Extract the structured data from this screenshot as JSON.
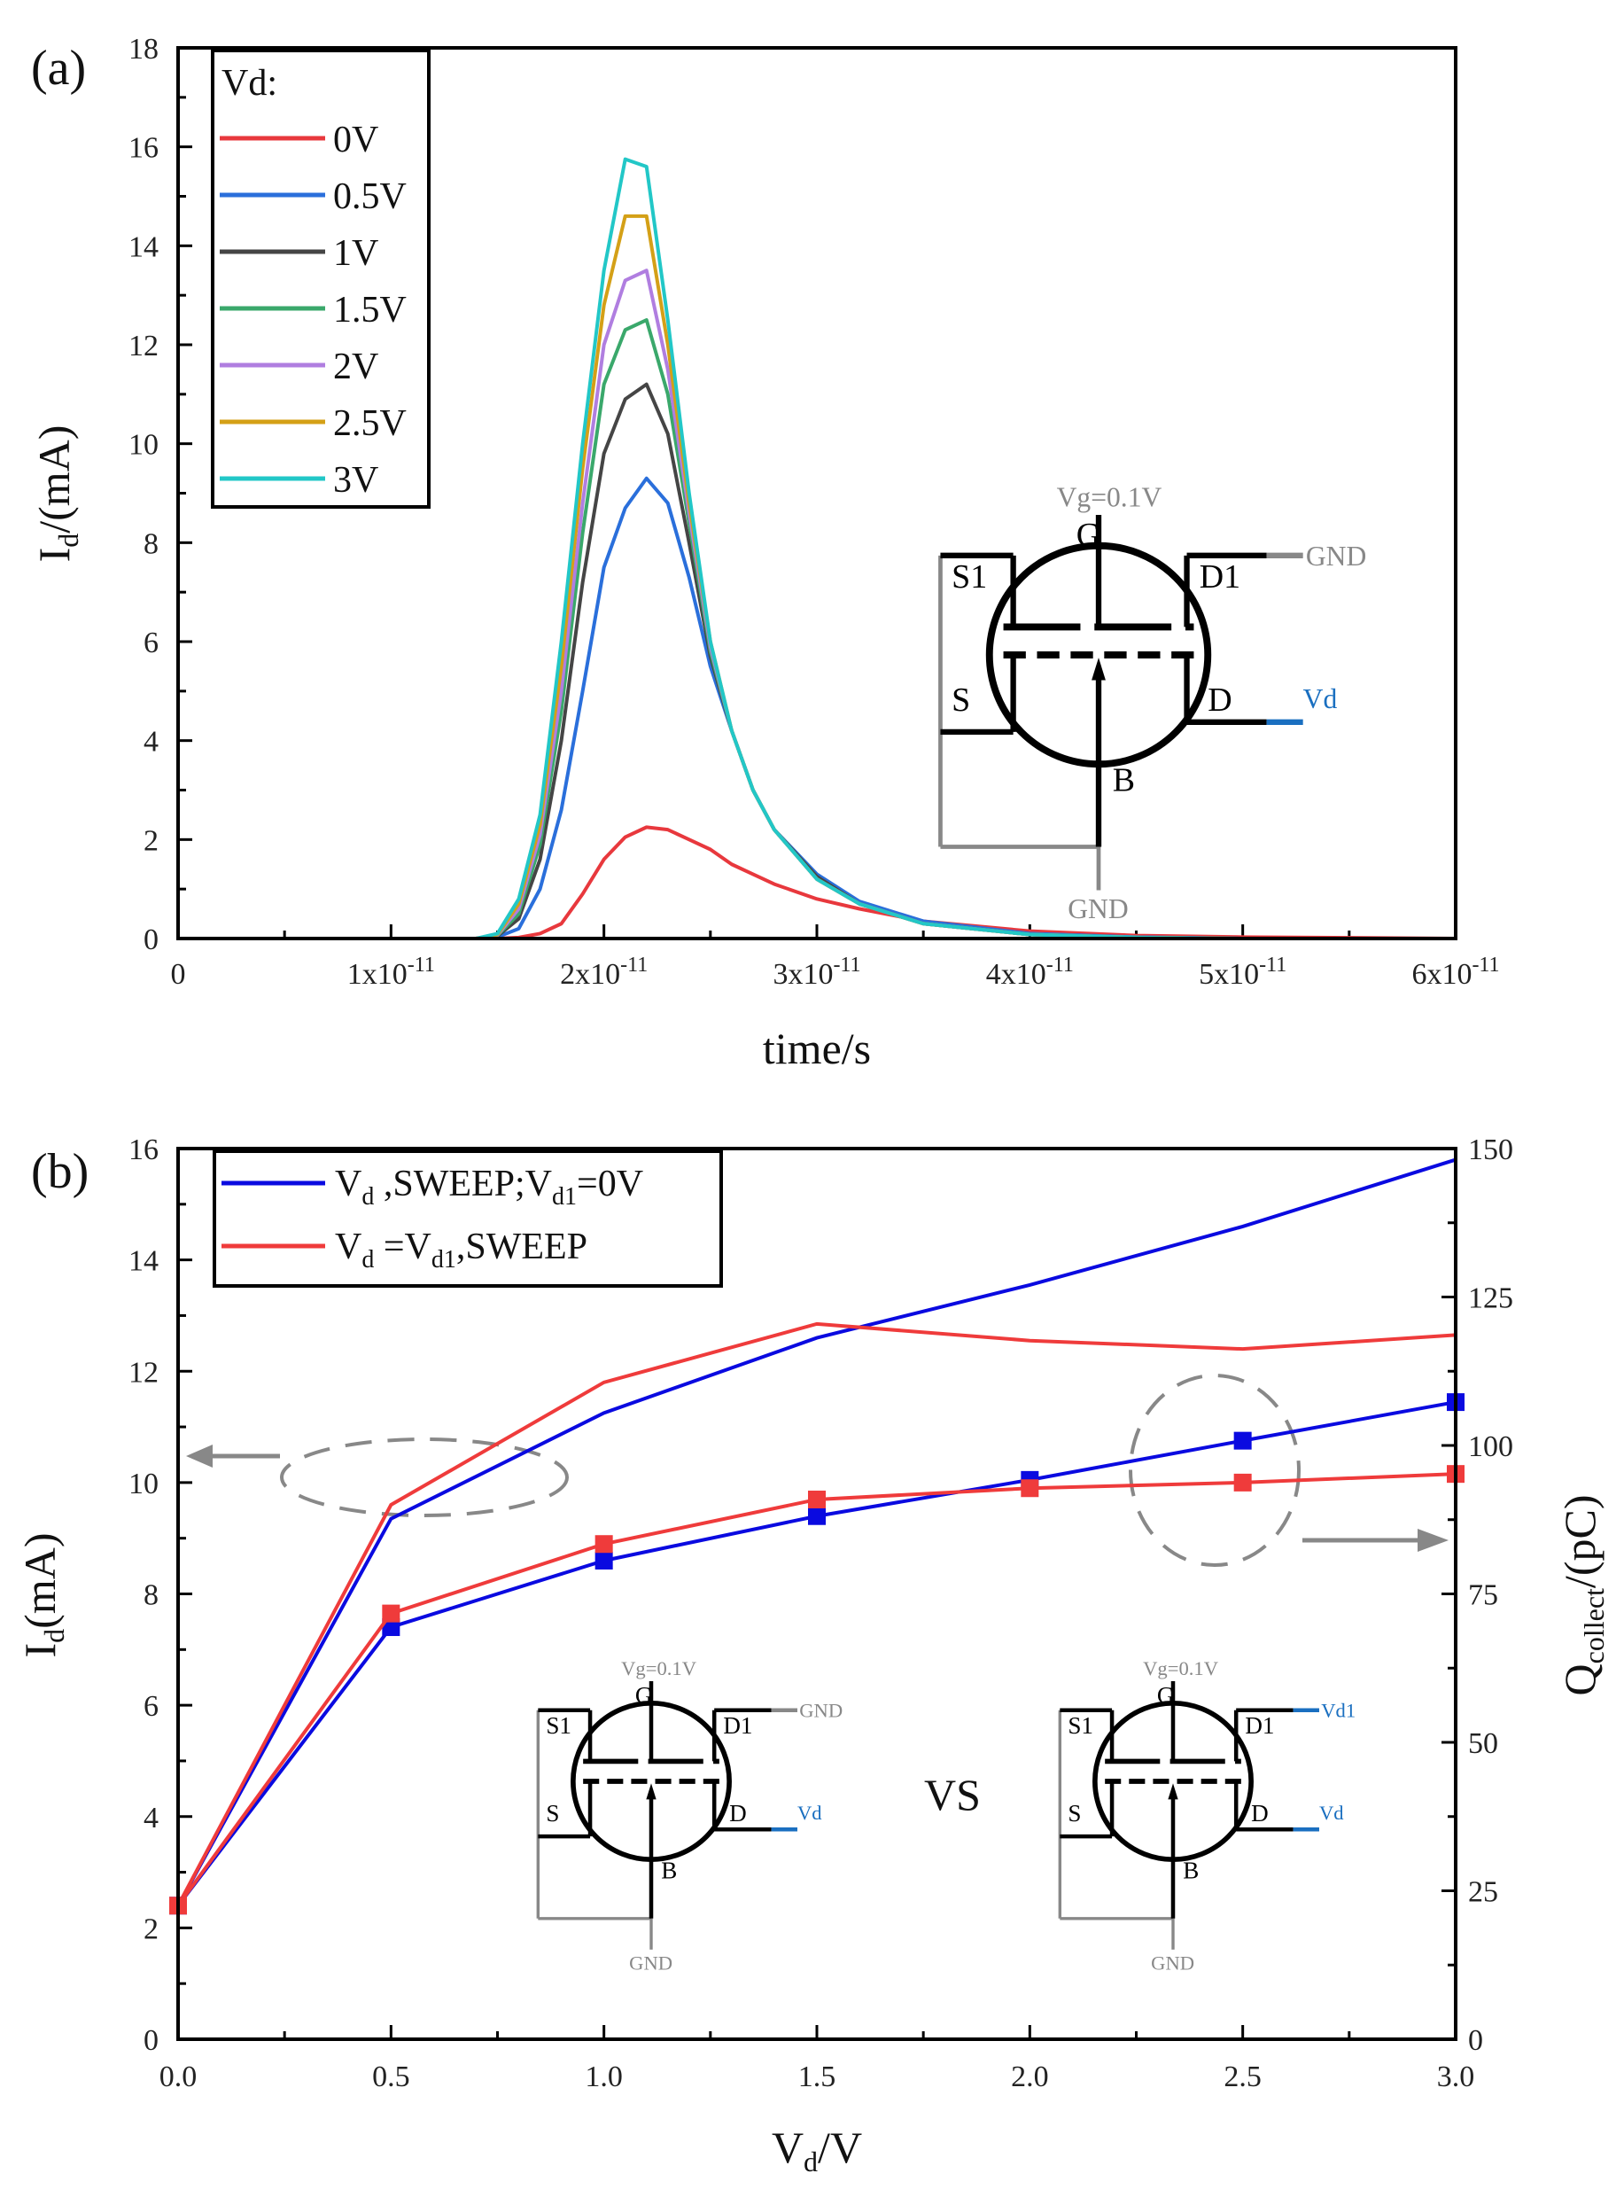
{
  "chart_data": [
    {
      "type": "line",
      "panel_label": "(a)",
      "xlabel": "time/s",
      "ylabel_main": "I",
      "ylabel_sub": "d",
      "ylabel_rest": "/(mA)",
      "xlim": [
        0,
        6e-11
      ],
      "ylim": [
        0,
        18
      ],
      "x_unit_scale": 1e-11,
      "xtick_values": [
        0,
        1,
        2,
        3,
        4,
        5,
        6
      ],
      "xtick_labels": [
        {
          "m": "0",
          "e": ""
        },
        {
          "m": "1x10",
          "e": "-11"
        },
        {
          "m": "2x10",
          "e": "-11"
        },
        {
          "m": "3x10",
          "e": "-11"
        },
        {
          "m": "4x10",
          "e": "-11"
        },
        {
          "m": "5x10",
          "e": "-11"
        },
        {
          "m": "6x10",
          "e": "-11"
        }
      ],
      "ytick_labels": [
        "0",
        "2",
        "4",
        "6",
        "8",
        "10",
        "12",
        "14",
        "16",
        "18"
      ],
      "legend_title": "Vd:",
      "legend_placement": "top-left",
      "x": [
        0,
        1.4,
        1.5,
        1.6,
        1.7,
        1.8,
        1.9,
        2.0,
        2.1,
        2.2,
        2.3,
        2.4,
        2.5,
        2.6,
        2.7,
        2.8,
        3.0,
        3.2,
        3.5,
        4.0,
        4.5,
        5.0,
        6.0
      ],
      "series": [
        {
          "name": "0V",
          "color": "#e8383d",
          "values": [
            0,
            0,
            0,
            0.02,
            0.1,
            0.3,
            0.9,
            1.6,
            2.05,
            2.25,
            2.2,
            2.0,
            1.8,
            1.5,
            1.3,
            1.1,
            0.8,
            0.6,
            0.35,
            0.15,
            0.06,
            0.03,
            0
          ]
        },
        {
          "name": "0.5V",
          "color": "#2a6fdb",
          "values": [
            0,
            0,
            0.03,
            0.2,
            1,
            2.6,
            5,
            7.5,
            8.7,
            9.3,
            8.8,
            7.3,
            5.5,
            4.2,
            3.0,
            2.2,
            1.3,
            0.75,
            0.35,
            0.1,
            0.03,
            0,
            0
          ]
        },
        {
          "name": "1V",
          "color": "#454545",
          "values": [
            0,
            0,
            0.05,
            0.4,
            1.6,
            4,
            7.2,
            9.8,
            10.9,
            11.2,
            10.2,
            8,
            5.7,
            4.2,
            3.0,
            2.2,
            1.25,
            0.7,
            0.3,
            0.08,
            0.02,
            0,
            0
          ]
        },
        {
          "name": "1.5V",
          "color": "#3aa86b",
          "values": [
            0,
            0,
            0.06,
            0.5,
            1.9,
            4.6,
            8.2,
            11.2,
            12.3,
            12.5,
            11,
            8.4,
            5.8,
            4.2,
            3.0,
            2.2,
            1.2,
            0.7,
            0.3,
            0.08,
            0.02,
            0,
            0
          ]
        },
        {
          "name": "2V",
          "color": "#b07ee0",
          "values": [
            0,
            0,
            0.07,
            0.6,
            2.1,
            5,
            8.8,
            12,
            13.3,
            13.5,
            11.5,
            8.6,
            5.9,
            4.2,
            3.0,
            2.2,
            1.2,
            0.7,
            0.3,
            0.08,
            0.02,
            0,
            0
          ]
        },
        {
          "name": "2.5V",
          "color": "#d4a017",
          "values": [
            0,
            0,
            0.08,
            0.7,
            2.3,
            5.5,
            9.5,
            12.8,
            14.6,
            14.6,
            12,
            8.8,
            6,
            4.2,
            3.0,
            2.2,
            1.2,
            0.7,
            0.3,
            0.08,
            0.02,
            0,
            0
          ]
        },
        {
          "name": "3V",
          "color": "#22c7c7",
          "values": [
            0,
            0,
            0.1,
            0.8,
            2.5,
            6,
            10,
            13.5,
            15.75,
            15.6,
            12.5,
            9,
            6,
            4.2,
            3.0,
            2.2,
            1.2,
            0.7,
            0.3,
            0.08,
            0.02,
            0,
            0
          ]
        }
      ],
      "inset": {
        "vg": "Vg=0.1V",
        "g": "G",
        "s1": "S1",
        "d1": "D1",
        "s": "S",
        "d": "D",
        "b": "B",
        "d1_conn": "GND",
        "d_conn": "Vd",
        "gnd": "GND"
      }
    },
    {
      "type": "line",
      "panel_label": "(b)",
      "xlabel_main": "V",
      "xlabel_sub": "d",
      "xlabel_rest": "/V",
      "ylabel_main": "I",
      "ylabel_sub": "d",
      "ylabel_rest": "(mA)",
      "y2label_main": "Q",
      "y2label_sub": "collect",
      "y2label_rest": "/(pC)",
      "xlim": [
        0,
        3
      ],
      "ylim": [
        0,
        16
      ],
      "y2lim": [
        0,
        150
      ],
      "xtick_labels": [
        "0.0",
        "0.5",
        "1.0",
        "1.5",
        "2.0",
        "2.5",
        "3.0"
      ],
      "ytick_labels": [
        "0",
        "2",
        "4",
        "6",
        "8",
        "10",
        "12",
        "14",
        "16"
      ],
      "y2tick_labels": [
        "0",
        "25",
        "50",
        "75",
        "100",
        "125",
        "150"
      ],
      "legend_placement": "top-left",
      "legend": [
        {
          "p1": "V",
          "s1": "d",
          "p2": " ,SWEEP;V",
          "s2": "d1",
          "p3": "=0V",
          "color": "#0a0ae0"
        },
        {
          "p1": "V",
          "s1": "d",
          "p2": " =V",
          "s2": "d1",
          "p3": ",SWEEP",
          "color": "#ef3b3b"
        }
      ],
      "x": [
        0,
        0.5,
        1.0,
        1.5,
        2.0,
        2.5,
        3.0
      ],
      "series": [
        {
          "name": "Id, Vd SWEEP; Vd1=0V",
          "axis": "left",
          "color": "#0a0ae0",
          "marker": false,
          "values": [
            2.4,
            9.35,
            11.25,
            12.6,
            13.55,
            14.6,
            15.8
          ]
        },
        {
          "name": "Id, Vd=Vd1 SWEEP",
          "axis": "left",
          "color": "#ef3b3b",
          "marker": false,
          "values": [
            2.4,
            9.6,
            11.8,
            12.85,
            12.55,
            12.4,
            12.65
          ]
        },
        {
          "name": "Qcollect, Vd SWEEP; Vd1=0V",
          "axis": "right",
          "color": "#0a0ae0",
          "marker": true,
          "values": [
            22.5,
            69.4,
            80.6,
            88.1,
            94.2,
            100.8,
            107.3
          ]
        },
        {
          "name": "Qcollect, Vd=Vd1 SWEEP",
          "axis": "right",
          "color": "#ef3b3b",
          "marker": true,
          "values": [
            22.5,
            71.7,
            83.4,
            90.9,
            92.8,
            93.75,
            95.2
          ]
        }
      ],
      "vs_label": "VS",
      "inset_left": {
        "vg": "Vg=0.1V",
        "g": "G",
        "s1": "S1",
        "d1": "D1",
        "s": "S",
        "d": "D",
        "b": "B",
        "d1_conn": "GND",
        "d_conn": "Vd",
        "gnd": "GND"
      },
      "inset_right": {
        "vg": "Vg=0.1V",
        "g": "G",
        "s1": "S1",
        "d1": "D1",
        "s": "S",
        "d": "D",
        "b": "B",
        "d1_conn": "Vd1",
        "d_conn": "Vd",
        "gnd": "GND"
      }
    }
  ],
  "colors": {
    "axis": "#000000",
    "annot_gray": "#808080",
    "conn_blue": "#1a6fc0"
  }
}
